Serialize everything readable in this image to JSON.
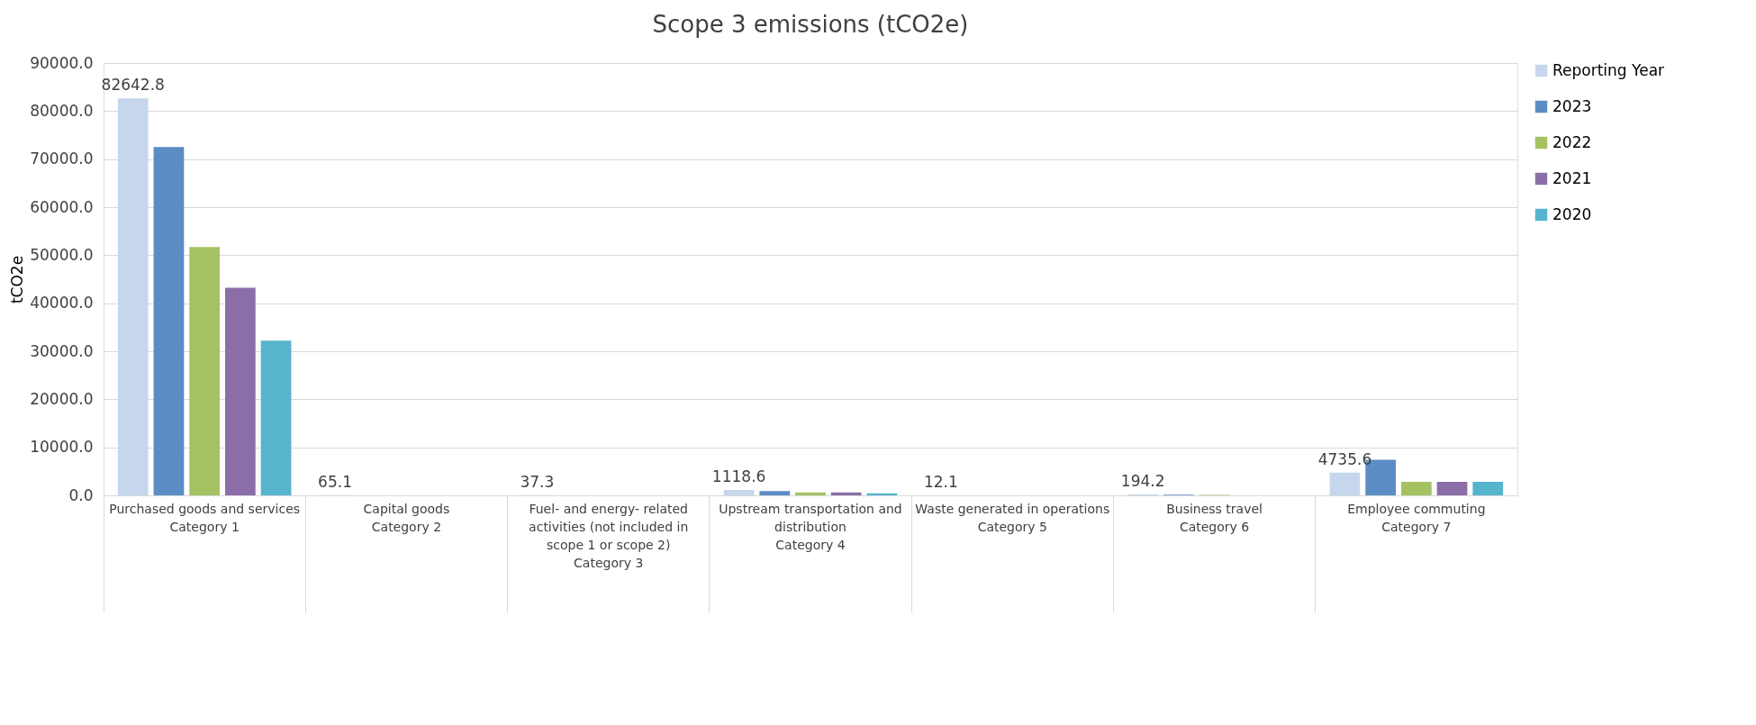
{
  "chart_data": {
    "type": "bar",
    "title": "Scope 3 emissions (tCO2e)",
    "ylabel": "tCO2e",
    "categories": [
      "Purchased goods and services\nCategory 1",
      "Capital goods\nCategory 2",
      "Fuel- and energy- related\nactivities (not included in\nscope 1 or scope 2)\nCategory 3",
      "Upstream transportation and\ndistribution\nCategory 4",
      "Waste generated in operations\nCategory 5",
      "Business travel\nCategory 6",
      "Employee commuting\nCategory 7"
    ],
    "series": [
      {
        "name": "Reporting Year",
        "color": "#c6d7ed",
        "values": [
          82642.8,
          65.1,
          37.3,
          1118.6,
          12.1,
          194.2,
          4735.6
        ],
        "value_labels": [
          "82642.8",
          "65.1",
          "37.3",
          "1118.6",
          "12.1",
          "194.2",
          "4735.6"
        ]
      },
      {
        "name": "2023",
        "color": "#5b8dc4",
        "values": [
          72500,
          null,
          null,
          900,
          null,
          150,
          7400
        ]
      },
      {
        "name": "2022",
        "color": "#a5c263",
        "values": [
          51700,
          null,
          null,
          600,
          null,
          100,
          2800
        ]
      },
      {
        "name": "2021",
        "color": "#8b6ea8",
        "values": [
          43200,
          null,
          null,
          600,
          null,
          null,
          2800
        ]
      },
      {
        "name": "2020",
        "color": "#56b4cc",
        "values": [
          32200,
          null,
          null,
          400,
          null,
          null,
          2800
        ]
      }
    ],
    "ylim": [
      0,
      90000
    ],
    "yticks": [
      {
        "value": 0,
        "label": "0.0"
      },
      {
        "value": 10000,
        "label": "10000.0"
      },
      {
        "value": 20000,
        "label": "20000.0"
      },
      {
        "value": 30000,
        "label": "30000.0"
      },
      {
        "value": 40000,
        "label": "40000.0"
      },
      {
        "value": 50000,
        "label": "50000.0"
      },
      {
        "value": 60000,
        "label": "60000.0"
      },
      {
        "value": 70000,
        "label": "70000.0"
      },
      {
        "value": 80000,
        "label": "80000.0"
      },
      {
        "value": 90000,
        "label": "90000.0"
      }
    ],
    "grid": "y",
    "legend": "right"
  }
}
